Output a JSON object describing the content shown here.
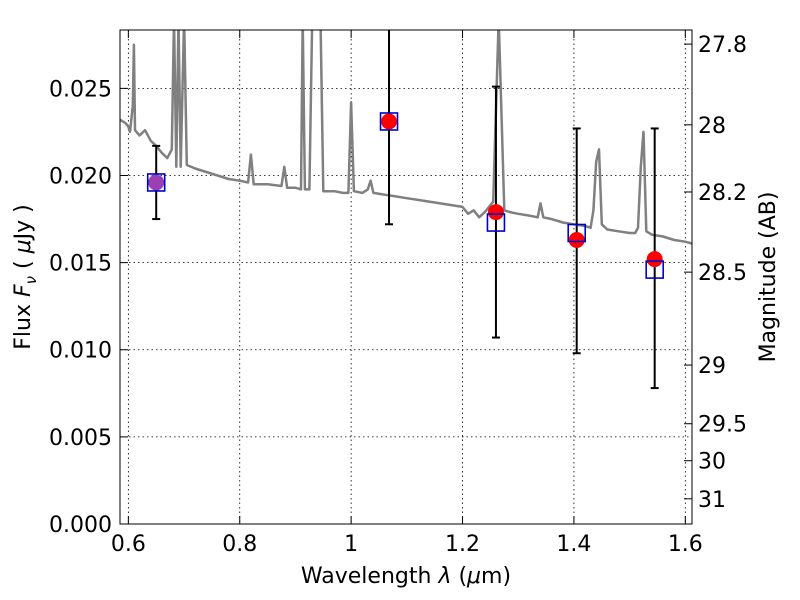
{
  "chart_data": {
    "type": "scatter",
    "xlabel": "Wavelength",
    "xlabel_symbol": "λ",
    "xlabel_unit_open": " (",
    "xlabel_unit_mu": "μ",
    "xlabel_unit_rest": "m)",
    "ylabel": "Flux",
    "ylabel_symbol": "F",
    "ylabel_symbol_sub": "ν",
    "ylabel_unit_open": "( ",
    "ylabel_unit_mu": "μ",
    "ylabel_unit_rest": "Jy )",
    "y2label": "Magnitude (AB)",
    "xlim": [
      0.585,
      1.612
    ],
    "ylim": [
      0.0,
      0.02835
    ],
    "grid": true,
    "x_ticks": [
      0.6,
      0.8,
      1.0,
      1.2,
      1.4,
      1.6
    ],
    "x_tick_labels": [
      "0.6",
      "0.8",
      "1",
      "1.2",
      "1.4",
      "1.6"
    ],
    "y_ticks": [
      0.0,
      0.005,
      0.01,
      0.015,
      0.02,
      0.025
    ],
    "y_tick_labels": [
      "0.000",
      "0.005",
      "0.010",
      "0.015",
      "0.020",
      "0.025"
    ],
    "mag_ticks": [
      "27.8",
      "28",
      "28.2",
      "28.5",
      "29",
      "29.5",
      "30",
      "31"
    ],
    "colors": {
      "observed": "#ff0000",
      "model_box": "#0000cc",
      "spectrum": "#808080",
      "errorbar": "#000000",
      "overlap": "#9b3fb5"
    },
    "series": [
      {
        "marker": "circle",
        "points": [
          {
            "x": 0.65,
            "y": 0.0196,
            "err_lo": 0.0175,
            "err_hi": 0.0217
          },
          {
            "x": 1.068,
            "y": 0.0231,
            "err_lo": 0.0172,
            "err_hi": 0.0285
          },
          {
            "x": 1.26,
            "y": 0.0179,
            "err_lo": 0.0107,
            "err_hi": 0.0251
          },
          {
            "x": 1.405,
            "y": 0.0163,
            "err_lo": 0.0098,
            "err_hi": 0.0227
          },
          {
            "x": 1.545,
            "y": 0.0152,
            "err_lo": 0.0078,
            "err_hi": 0.0227
          }
        ]
      },
      {
        "marker": "open-square",
        "points": [
          {
            "x": 0.65,
            "y": 0.0196
          },
          {
            "x": 1.068,
            "y": 0.0231
          },
          {
            "x": 1.26,
            "y": 0.0173
          },
          {
            "x": 1.405,
            "y": 0.0167
          },
          {
            "x": 1.545,
            "y": 0.0146
          }
        ]
      },
      {
        "type": "line",
        "points": [
          [
            0.585,
            0.0232
          ],
          [
            0.595,
            0.023
          ],
          [
            0.6,
            0.0228
          ],
          [
            0.603,
            0.0225
          ],
          [
            0.608,
            0.024
          ],
          [
            0.61,
            0.0275
          ],
          [
            0.612,
            0.0226
          ],
          [
            0.62,
            0.0223
          ],
          [
            0.63,
            0.0226
          ],
          [
            0.64,
            0.022
          ],
          [
            0.65,
            0.0217
          ],
          [
            0.66,
            0.0213
          ],
          [
            0.67,
            0.021
          ],
          [
            0.678,
            0.0215
          ],
          [
            0.682,
            0.029
          ],
          [
            0.686,
            0.0205
          ],
          [
            0.69,
            0.029
          ],
          [
            0.694,
            0.0205
          ],
          [
            0.7,
            0.029
          ],
          [
            0.705,
            0.0206
          ],
          [
            0.72,
            0.0204
          ],
          [
            0.74,
            0.0202
          ],
          [
            0.76,
            0.02
          ],
          [
            0.78,
            0.0198
          ],
          [
            0.8,
            0.0197
          ],
          [
            0.815,
            0.0196
          ],
          [
            0.82,
            0.0212
          ],
          [
            0.825,
            0.0195
          ],
          [
            0.85,
            0.0195
          ],
          [
            0.875,
            0.0194
          ],
          [
            0.88,
            0.0205
          ],
          [
            0.885,
            0.0193
          ],
          [
            0.9,
            0.0193
          ],
          [
            0.91,
            0.0192
          ],
          [
            0.913,
            0.029
          ],
          [
            0.917,
            0.0192
          ],
          [
            0.925,
            0.0192
          ],
          [
            0.93,
            0.029
          ],
          [
            0.945,
            0.029
          ],
          [
            0.95,
            0.0191
          ],
          [
            0.97,
            0.0191
          ],
          [
            0.985,
            0.019
          ],
          [
            0.995,
            0.019
          ],
          [
            1.0,
            0.0242
          ],
          [
            1.005,
            0.0191
          ],
          [
            1.02,
            0.019
          ],
          [
            1.03,
            0.0192
          ],
          [
            1.035,
            0.0197
          ],
          [
            1.04,
            0.019
          ],
          [
            1.06,
            0.0189
          ],
          [
            1.08,
            0.0188
          ],
          [
            1.1,
            0.0187
          ],
          [
            1.12,
            0.0186
          ],
          [
            1.14,
            0.0185
          ],
          [
            1.16,
            0.0184
          ],
          [
            1.18,
            0.0183
          ],
          [
            1.2,
            0.0182
          ],
          [
            1.21,
            0.0178
          ],
          [
            1.22,
            0.018
          ],
          [
            1.23,
            0.0176
          ],
          [
            1.24,
            0.0179
          ],
          [
            1.255,
            0.0185
          ],
          [
            1.265,
            0.029
          ],
          [
            1.275,
            0.018
          ],
          [
            1.285,
            0.0179
          ],
          [
            1.3,
            0.0178
          ],
          [
            1.32,
            0.0177
          ],
          [
            1.335,
            0.0176
          ],
          [
            1.34,
            0.0184
          ],
          [
            1.345,
            0.0176
          ],
          [
            1.36,
            0.0175
          ],
          [
            1.38,
            0.0173
          ],
          [
            1.4,
            0.0172
          ],
          [
            1.42,
            0.0171
          ],
          [
            1.43,
            0.017
          ],
          [
            1.435,
            0.018
          ],
          [
            1.44,
            0.0208
          ],
          [
            1.445,
            0.0215
          ],
          [
            1.45,
            0.0172
          ],
          [
            1.46,
            0.0169
          ],
          [
            1.48,
            0.0168
          ],
          [
            1.5,
            0.0167
          ],
          [
            1.51,
            0.0167
          ],
          [
            1.515,
            0.017
          ],
          [
            1.52,
            0.0205
          ],
          [
            1.525,
            0.0225
          ],
          [
            1.53,
            0.0168
          ],
          [
            1.54,
            0.0166
          ],
          [
            1.56,
            0.0165
          ],
          [
            1.58,
            0.0163
          ],
          [
            1.6,
            0.0162
          ],
          [
            1.612,
            0.0161
          ]
        ]
      }
    ]
  }
}
